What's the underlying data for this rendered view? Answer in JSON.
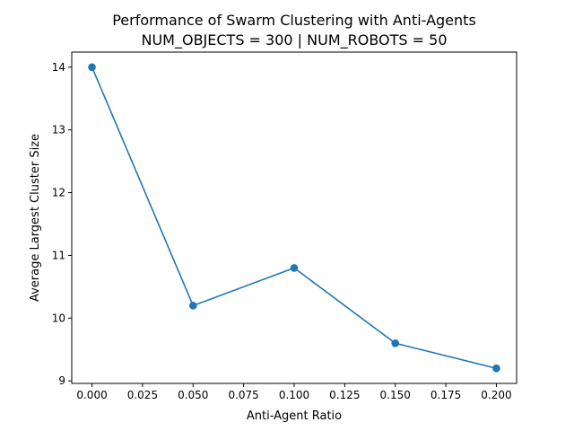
{
  "chart_data": {
    "type": "line",
    "title": "Performance of Swarm Clustering with Anti-Agents",
    "subtitle": "NUM_OBJECTS = 300 | NUM_ROBOTS = 50",
    "xlabel": "Anti-Agent Ratio",
    "ylabel": "Average Largest Cluster Size",
    "x": [
      0.0,
      0.05,
      0.1,
      0.15,
      0.2
    ],
    "series": [
      {
        "values": [
          14.0,
          10.2,
          10.8,
          9.6,
          9.2
        ],
        "color": "#1f77b4"
      }
    ],
    "xlim": [
      -0.01,
      0.21
    ],
    "ylim": [
      8.96,
      14.24
    ],
    "x_ticks": [
      0.0,
      0.025,
      0.05,
      0.075,
      0.1,
      0.125,
      0.15,
      0.175,
      0.2
    ],
    "x_tick_labels": [
      "0.000",
      "0.025",
      "0.050",
      "0.075",
      "0.100",
      "0.125",
      "0.150",
      "0.175",
      "0.200"
    ],
    "y_ticks": [
      9,
      10,
      11,
      12,
      13,
      14
    ],
    "y_tick_labels": [
      "9",
      "10",
      "11",
      "12",
      "13",
      "14"
    ],
    "grid": false,
    "marker": "circle"
  }
}
